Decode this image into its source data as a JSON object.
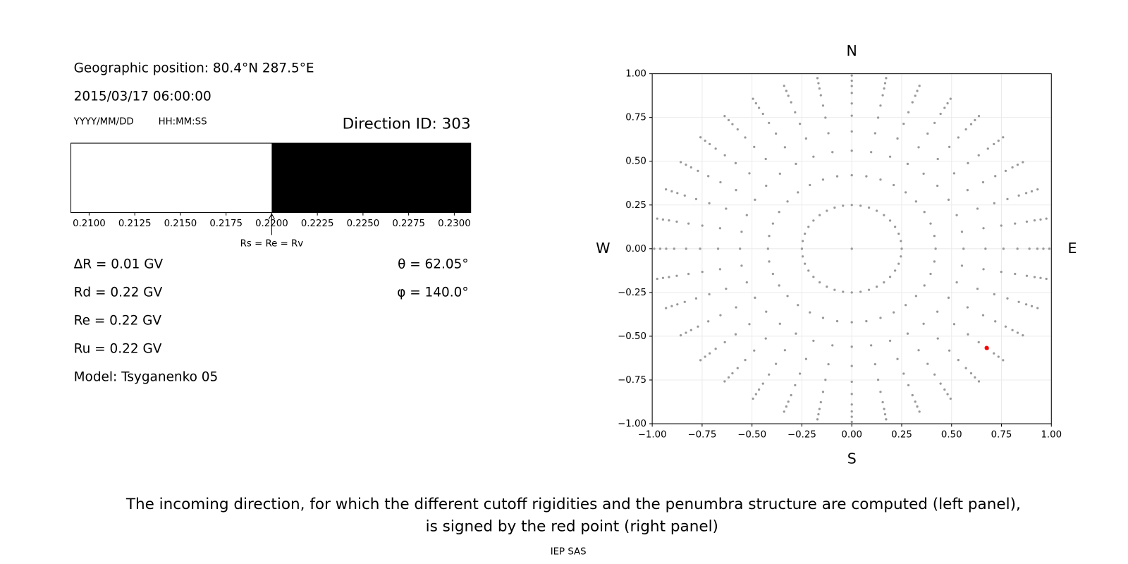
{
  "info": {
    "position": "Geographic position: 80.4°N 287.5°E",
    "datetime": "2015/03/17 06:00:00",
    "date_format": "YYYY/MM/DD",
    "time_format": "HH:MM:SS",
    "direction_id": "Direction ID: 303",
    "delta_r": "ΔR = 0.01 GV",
    "rd": "Rd = 0.22 GV",
    "re": "Re = 0.22 GV",
    "ru": "Ru = 0.22 GV",
    "model": "Model: Tsyganenko 05",
    "theta": "θ = 62.05°",
    "phi": "φ = 140.0°"
  },
  "chart_data": [
    {
      "type": "penumbra",
      "segments": [
        {
          "from": 0.209,
          "to": 0.22,
          "color": "#ffffff"
        },
        {
          "from": 0.22,
          "to": 0.2309,
          "color": "#000000"
        }
      ],
      "xlim": [
        0.209,
        0.2309
      ],
      "xticks": [
        {
          "value": 0.21,
          "label": "0.2100"
        },
        {
          "value": 0.2125,
          "label": "0.2125"
        },
        {
          "value": 0.215,
          "label": "0.2150"
        },
        {
          "value": 0.2175,
          "label": "0.2175"
        },
        {
          "value": 0.22,
          "label": "0.2200"
        },
        {
          "value": 0.2225,
          "label": "0.2225"
        },
        {
          "value": 0.225,
          "label": "0.2250"
        },
        {
          "value": 0.2275,
          "label": "0.2275"
        },
        {
          "value": 0.23,
          "label": "0.2300"
        }
      ],
      "annotation": {
        "x": 0.22,
        "text": "Rs = Re = Rv"
      }
    },
    {
      "type": "scatter",
      "directions": {
        "top": "N",
        "bottom": "S",
        "left": "W",
        "right": "E"
      },
      "xlim": [
        -1,
        1
      ],
      "ylim": [
        -1,
        1
      ],
      "xticks": [
        {
          "value": -1,
          "label": "−1.00"
        },
        {
          "value": -0.75,
          "label": "−0.75"
        },
        {
          "value": -0.5,
          "label": "−0.50"
        },
        {
          "value": -0.25,
          "label": "−0.25"
        },
        {
          "value": 0,
          "label": "0.00"
        },
        {
          "value": 0.25,
          "label": "0.25"
        },
        {
          "value": 0.5,
          "label": "0.50"
        },
        {
          "value": 0.75,
          "label": "0.75"
        },
        {
          "value": 1,
          "label": "1.00"
        }
      ],
      "yticks": [
        {
          "value": -1,
          "label": "−1.00"
        },
        {
          "value": -0.75,
          "label": "−0.75"
        },
        {
          "value": -0.5,
          "label": "−0.50"
        },
        {
          "value": -0.25,
          "label": "−0.25"
        },
        {
          "value": 0,
          "label": "0.00"
        },
        {
          "value": 0.25,
          "label": "0.25"
        },
        {
          "value": 0.5,
          "label": "0.50"
        },
        {
          "value": 0.75,
          "label": "0.75"
        },
        {
          "value": 1,
          "label": "1.00"
        }
      ],
      "grid": true,
      "series": [
        {
          "color": "#999999",
          "x": [
            0,
            0.25,
            0.246,
            0.235,
            0.217,
            0.192,
            0.161,
            0.125,
            0.086,
            0.044,
            0,
            -0.044,
            -0.086,
            -0.125,
            -0.161,
            -0.192,
            -0.217,
            -0.235,
            -0.246,
            -0.25,
            -0.246,
            -0.235,
            -0.217,
            -0.192,
            -0.161,
            -0.125,
            -0.086,
            -0.044,
            0,
            0.044,
            0.086,
            0.125,
            0.161,
            0.192,
            0.217,
            0.235,
            0.246,
            0.42,
            0.414,
            0.395,
            0.364,
            0.322,
            0.27,
            0.21,
            0.144,
            0.073,
            0,
            -0.073,
            -0.144,
            -0.21,
            -0.27,
            -0.322,
            -0.364,
            -0.395,
            -0.414,
            -0.42,
            -0.414,
            -0.395,
            -0.364,
            -0.322,
            -0.27,
            -0.21,
            -0.144,
            -0.073,
            0,
            0.073,
            0.144,
            0.21,
            0.27,
            0.322,
            0.364,
            0.395,
            0.414,
            0.56,
            0.552,
            0.526,
            0.485,
            0.429,
            0.36,
            0.28,
            0.192,
            0.097,
            0,
            -0.097,
            -0.192,
            -0.28,
            -0.36,
            -0.429,
            -0.485,
            -0.526,
            -0.552,
            -0.56,
            -0.552,
            -0.526,
            -0.485,
            -0.429,
            -0.36,
            -0.28,
            -0.192,
            -0.097,
            0,
            0.097,
            0.192,
            0.28,
            0.36,
            0.429,
            0.485,
            0.526,
            0.552,
            0.67,
            0.66,
            0.63,
            0.58,
            0.513,
            0.431,
            0.335,
            0.229,
            0.117,
            0,
            -0.117,
            -0.229,
            -0.335,
            -0.431,
            -0.513,
            -0.58,
            -0.63,
            -0.66,
            -0.67,
            -0.66,
            -0.63,
            -0.58,
            -0.513,
            -0.431,
            -0.335,
            -0.229,
            -0.117,
            0,
            0.117,
            0.229,
            0.335,
            0.431,
            0.513,
            0.58,
            0.63,
            0.66,
            0.76,
            0.749,
            0.714,
            0.658,
            0.582,
            0.489,
            0.38,
            0.26,
            0.132,
            0,
            -0.132,
            -0.26,
            -0.38,
            -0.489,
            -0.582,
            -0.658,
            -0.714,
            -0.749,
            -0.76,
            -0.749,
            -0.714,
            -0.658,
            -0.582,
            -0.489,
            -0.38,
            -0.26,
            -0.132,
            0,
            0.132,
            0.26,
            0.38,
            0.489,
            0.582,
            0.658,
            0.714,
            0.749,
            0.83,
            0.818,
            0.78,
            0.719,
            0.636,
            0.534,
            0.415,
            0.284,
            0.144,
            0,
            -0.144,
            -0.284,
            -0.415,
            -0.534,
            -0.636,
            -0.719,
            -0.78,
            -0.818,
            -0.83,
            -0.818,
            -0.78,
            -0.719,
            -0.636,
            -0.534,
            -0.415,
            -0.284,
            -0.144,
            0,
            0.144,
            0.284,
            0.415,
            0.534,
            0.636,
            0.719,
            0.78,
            0.818,
            0.89,
            0.877,
            0.837,
            0.771,
            0.682,
            0.572,
            0.445,
            0.304,
            0.155,
            0,
            -0.155,
            -0.304,
            -0.445,
            -0.572,
            -0.682,
            -0.771,
            -0.837,
            -0.877,
            -0.89,
            -0.877,
            -0.837,
            -0.771,
            -0.682,
            -0.572,
            -0.445,
            -0.304,
            -0.155,
            0,
            0.155,
            0.304,
            0.445,
            0.572,
            0.682,
            0.771,
            0.837,
            0.877,
            0.93,
            0.916,
            0.874,
            0.805,
            0.712,
            0.598,
            0.465,
            0.318,
            0.162,
            0,
            -0.162,
            -0.318,
            -0.465,
            -0.598,
            -0.712,
            -0.805,
            -0.874,
            -0.916,
            -0.93,
            -0.916,
            -0.874,
            -0.805,
            -0.712,
            -0.598,
            -0.465,
            -0.318,
            -0.162,
            0,
            0.162,
            0.318,
            0.465,
            0.598,
            0.712,
            0.805,
            0.874,
            0.916,
            0.96,
            0.946,
            0.902,
            0.831,
            0.735,
            0.617,
            0.48,
            0.328,
            0.167,
            0,
            -0.167,
            -0.328,
            -0.48,
            -0.617,
            -0.735,
            -0.831,
            -0.902,
            -0.946,
            -0.96,
            -0.946,
            -0.902,
            -0.831,
            -0.735,
            -0.617,
            -0.48,
            -0.328,
            -0.167,
            0,
            0.167,
            0.328,
            0.48,
            0.617,
            0.735,
            0.831,
            0.902,
            0.946,
            0.99,
            0.975,
            0.931,
            0.857,
            0.758,
            0.637,
            0.495,
            0.339,
            0.172,
            0,
            -0.172,
            -0.339,
            -0.495,
            -0.637,
            -0.758,
            -0.857,
            -0.931,
            -0.975,
            -0.99,
            -0.975,
            -0.931,
            -0.857,
            -0.758,
            -0.637,
            -0.495,
            -0.339,
            -0.172,
            0,
            0.172,
            0.339,
            0.495,
            0.637,
            0.758,
            0.857,
            0.931,
            0.975
          ],
          "values": [
            0,
            0,
            0.044,
            0.086,
            0.125,
            0.161,
            0.192,
            0.217,
            0.235,
            0.246,
            0.25,
            0.246,
            0.235,
            0.217,
            0.192,
            0.161,
            0.125,
            0.086,
            0.044,
            0,
            -0.044,
            -0.086,
            -0.125,
            -0.161,
            -0.192,
            -0.217,
            -0.235,
            -0.246,
            -0.25,
            -0.246,
            -0.235,
            -0.217,
            -0.192,
            -0.161,
            -0.125,
            -0.086,
            -0.044,
            0,
            0.073,
            0.144,
            0.21,
            0.27,
            0.322,
            0.364,
            0.395,
            0.414,
            0.42,
            0.414,
            0.395,
            0.364,
            0.322,
            0.27,
            0.21,
            0.144,
            0.073,
            0,
            -0.073,
            -0.144,
            -0.21,
            -0.27,
            -0.322,
            -0.364,
            -0.395,
            -0.414,
            -0.42,
            -0.414,
            -0.395,
            -0.364,
            -0.322,
            -0.27,
            -0.21,
            -0.144,
            -0.073,
            0,
            0.097,
            0.192,
            0.28,
            0.36,
            0.429,
            0.485,
            0.526,
            0.552,
            0.56,
            0.552,
            0.526,
            0.485,
            0.429,
            0.36,
            0.28,
            0.192,
            0.097,
            0,
            -0.097,
            -0.192,
            -0.28,
            -0.36,
            -0.429,
            -0.485,
            -0.526,
            -0.552,
            -0.56,
            -0.552,
            -0.526,
            -0.485,
            -0.429,
            -0.36,
            -0.28,
            -0.192,
            -0.097,
            0,
            0.117,
            0.229,
            0.335,
            0.431,
            0.513,
            0.58,
            0.63,
            0.66,
            0.67,
            0.66,
            0.63,
            0.58,
            0.513,
            0.431,
            0.335,
            0.229,
            0.117,
            0,
            -0.117,
            -0.229,
            -0.335,
            -0.431,
            -0.513,
            -0.58,
            -0.63,
            -0.66,
            -0.67,
            -0.66,
            -0.63,
            -0.58,
            -0.513,
            -0.431,
            -0.335,
            -0.229,
            -0.117,
            0,
            0.132,
            0.26,
            0.38,
            0.489,
            0.582,
            0.658,
            0.714,
            0.749,
            0.76,
            0.749,
            0.714,
            0.658,
            0.582,
            0.489,
            0.38,
            0.26,
            0.132,
            0,
            -0.132,
            -0.26,
            -0.38,
            -0.489,
            -0.582,
            -0.658,
            -0.714,
            -0.749,
            -0.76,
            -0.749,
            -0.714,
            -0.658,
            -0.582,
            -0.489,
            -0.38,
            -0.26,
            -0.132,
            0,
            0.144,
            0.284,
            0.415,
            0.534,
            0.636,
            0.719,
            0.78,
            0.818,
            0.83,
            0.818,
            0.78,
            0.719,
            0.636,
            0.534,
            0.415,
            0.284,
            0.144,
            0,
            -0.144,
            -0.284,
            -0.415,
            -0.534,
            -0.636,
            -0.719,
            -0.78,
            -0.818,
            -0.83,
            -0.818,
            -0.78,
            -0.719,
            -0.636,
            -0.534,
            -0.415,
            -0.284,
            -0.144,
            0,
            0.155,
            0.304,
            0.445,
            0.572,
            0.682,
            0.771,
            0.837,
            0.877,
            0.89,
            0.877,
            0.837,
            0.771,
            0.682,
            0.572,
            0.445,
            0.304,
            0.155,
            0,
            -0.155,
            -0.304,
            -0.445,
            -0.572,
            -0.682,
            -0.771,
            -0.837,
            -0.877,
            -0.89,
            -0.877,
            -0.837,
            -0.771,
            -0.682,
            -0.572,
            -0.445,
            -0.304,
            -0.155,
            0,
            0.162,
            0.318,
            0.465,
            0.598,
            0.712,
            0.805,
            0.874,
            0.916,
            0.93,
            0.916,
            0.874,
            0.805,
            0.712,
            0.598,
            0.465,
            0.318,
            0.162,
            0,
            -0.162,
            -0.318,
            -0.465,
            -0.598,
            -0.712,
            -0.805,
            -0.874,
            -0.916,
            -0.93,
            -0.916,
            -0.874,
            -0.805,
            -0.712,
            -0.598,
            -0.465,
            -0.318,
            -0.162,
            0,
            0.167,
            0.328,
            0.48,
            0.617,
            0.735,
            0.831,
            0.902,
            0.946,
            0.96,
            0.946,
            0.902,
            0.831,
            0.735,
            0.617,
            0.48,
            0.328,
            0.167,
            0,
            -0.167,
            -0.328,
            -0.48,
            -0.617,
            -0.735,
            -0.831,
            -0.902,
            -0.946,
            -0.96,
            -0.946,
            -0.902,
            -0.831,
            -0.735,
            -0.617,
            -0.48,
            -0.328,
            -0.167,
            0,
            0.172,
            0.339,
            0.495,
            0.637,
            0.758,
            0.857,
            0.931,
            0.975,
            0.99,
            0.975,
            0.931,
            0.857,
            0.758,
            0.637,
            0.495,
            0.339,
            0.172,
            0,
            -0.172,
            -0.339,
            -0.495,
            -0.637,
            -0.758,
            -0.857,
            -0.931,
            -0.975,
            -0.99,
            -0.975,
            -0.931,
            -0.857,
            -0.758,
            -0.637,
            -0.495,
            -0.339,
            -0.172
          ]
        },
        {
          "color": "#ff0000",
          "x": [
            0.676
          ],
          "values": [
            -0.567
          ]
        }
      ]
    }
  ],
  "caption": [
    "The incoming direction, for which the different cutoff rigidities and the penumbra structure are computed (left panel),",
    "is signed by the red point (right panel)"
  ],
  "footer": "IEP SAS"
}
